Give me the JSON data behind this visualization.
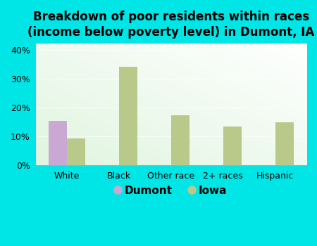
{
  "title": "Breakdown of poor residents within races\n(income below poverty level) in Dumont, IA",
  "categories": [
    "White",
    "Black",
    "Other race",
    "2+ races",
    "Hispanic"
  ],
  "dumont_values": [
    15.5,
    0,
    0,
    0,
    0
  ],
  "iowa_values": [
    9.2,
    34.0,
    17.3,
    13.5,
    15.0
  ],
  "dumont_color": "#c9a8d4",
  "iowa_color": "#b8c98a",
  "ylim": [
    0,
    42
  ],
  "yticks": [
    0,
    10,
    20,
    30,
    40
  ],
  "yticklabels": [
    "0%",
    "10%",
    "20%",
    "30%",
    "40%"
  ],
  "bar_width": 0.35,
  "plot_bg_color": "#e8f5e8",
  "outer_bg_color": "#00e5e5",
  "legend_labels": [
    "Dumont",
    "Iowa"
  ],
  "title_fontsize": 12,
  "tick_fontsize": 9,
  "ytick_fontsize": 9,
  "grid_color": "#d0e8d0",
  "spine_color": "#aaaaaa"
}
